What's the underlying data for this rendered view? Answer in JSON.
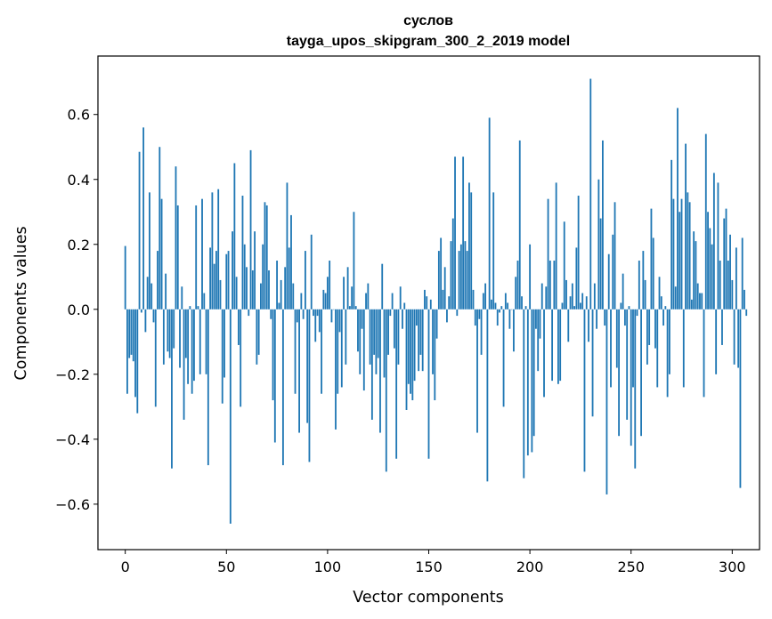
{
  "chart_data": {
    "type": "bar",
    "title": "суслов",
    "subtitle": "tayga_upos_skipgram_300_2_2019 model",
    "xlabel": "Vector components",
    "ylabel": "Components values",
    "xlim": [
      -13.5,
      313.5
    ],
    "ylim": [
      -0.74,
      0.78
    ],
    "xticks": [
      0,
      50,
      100,
      150,
      200,
      250,
      300
    ],
    "xtick_labels": [
      "0",
      "50",
      "100",
      "150",
      "200",
      "250",
      "300"
    ],
    "yticks": [
      -0.6,
      -0.4,
      -0.2,
      0.0,
      0.2,
      0.4,
      0.6
    ],
    "ytick_labels": [
      "−0.6",
      "−0.4",
      "−0.2",
      "0.0",
      "0.2",
      "0.4",
      "0.6"
    ],
    "color": "#1f77b4",
    "grid": false,
    "values": [
      0.195,
      -0.26,
      -0.15,
      -0.14,
      -0.16,
      -0.27,
      -0.32,
      0.485,
      -0.01,
      0.56,
      -0.07,
      0.1,
      0.36,
      0.08,
      -0.04,
      -0.3,
      0.18,
      0.5,
      0.34,
      -0.17,
      0.11,
      -0.13,
      -0.15,
      -0.49,
      -0.12,
      0.44,
      0.32,
      -0.18,
      0.07,
      -0.34,
      -0.15,
      -0.23,
      0.01,
      -0.26,
      -0.22,
      0.32,
      0.01,
      -0.2,
      0.34,
      0.05,
      -0.2,
      -0.48,
      0.19,
      0.36,
      0.14,
      0.18,
      0.37,
      0.09,
      -0.29,
      -0.21,
      0.17,
      0.18,
      -0.66,
      0.24,
      0.45,
      0.1,
      -0.11,
      -0.3,
      0.35,
      0.2,
      0.13,
      -0.02,
      0.49,
      0.12,
      0.24,
      -0.17,
      -0.14,
      0.08,
      0.2,
      0.33,
      0.32,
      0.12,
      -0.03,
      -0.28,
      -0.41,
      0.15,
      0.02,
      0.09,
      -0.48,
      0.13,
      0.39,
      0.19,
      0.29,
      0.08,
      -0.26,
      -0.04,
      -0.38,
      0.05,
      -0.03,
      0.18,
      -0.35,
      -0.47,
      0.23,
      -0.02,
      -0.1,
      -0.02,
      -0.07,
      -0.26,
      0.06,
      0.05,
      0.1,
      0.15,
      -0.04,
      0.0,
      -0.37,
      -0.26,
      -0.07,
      -0.24,
      0.1,
      -0.17,
      0.13,
      0.01,
      0.07,
      0.3,
      0.01,
      -0.13,
      -0.2,
      -0.06,
      -0.25,
      0.05,
      0.08,
      -0.17,
      -0.34,
      -0.14,
      -0.2,
      -0.15,
      -0.38,
      0.14,
      -0.21,
      -0.5,
      -0.14,
      -0.02,
      0.05,
      -0.12,
      -0.46,
      -0.17,
      0.07,
      -0.06,
      0.02,
      -0.31,
      -0.23,
      -0.26,
      -0.28,
      -0.22,
      -0.05,
      -0.19,
      -0.14,
      -0.19,
      0.06,
      0.04,
      -0.46,
      0.03,
      -0.2,
      -0.28,
      -0.09,
      0.18,
      0.22,
      0.06,
      0.13,
      -0.04,
      0.04,
      0.21,
      0.28,
      0.47,
      -0.02,
      0.18,
      0.2,
      0.47,
      0.21,
      0.18,
      0.39,
      0.36,
      0.06,
      -0.05,
      -0.38,
      -0.03,
      -0.14,
      0.05,
      0.08,
      -0.53,
      0.59,
      0.03,
      0.36,
      0.02,
      -0.05,
      -0.01,
      0.01,
      -0.3,
      0.05,
      0.02,
      -0.06,
      0.0,
      -0.13,
      0.1,
      0.15,
      0.52,
      0.04,
      -0.52,
      0.01,
      -0.45,
      0.2,
      -0.44,
      -0.39,
      -0.06,
      -0.19,
      -0.09,
      0.08,
      -0.27,
      0.07,
      0.34,
      0.15,
      -0.22,
      0.15,
      0.39,
      -0.23,
      -0.22,
      0.02,
      0.27,
      0.09,
      -0.1,
      0.04,
      0.08,
      0.01,
      0.19,
      0.35,
      0.02,
      0.05,
      -0.5,
      0.04,
      -0.1,
      0.71,
      -0.33,
      0.08,
      -0.06,
      0.4,
      0.28,
      0.52,
      -0.05,
      -0.57,
      0.17,
      -0.24,
      0.23,
      0.33,
      -0.18,
      -0.39,
      0.02,
      0.11,
      -0.05,
      -0.34,
      0.01,
      -0.42,
      -0.24,
      -0.49,
      -0.02,
      0.15,
      -0.39,
      0.18,
      0.09,
      -0.17,
      -0.11,
      0.31,
      0.22,
      -0.12,
      -0.24,
      0.1,
      0.04,
      -0.05,
      0.01,
      -0.27,
      -0.2,
      0.46,
      0.34,
      0.07,
      0.62,
      0.3,
      0.34,
      -0.24,
      0.51,
      0.36,
      0.33,
      0.03,
      0.24,
      0.21,
      0.08,
      0.05,
      0.05,
      -0.27,
      0.54,
      0.3,
      0.25,
      0.2,
      0.42,
      -0.2,
      0.39,
      0.15,
      -0.11,
      0.28,
      0.31,
      0.15,
      0.23,
      0.09,
      -0.17,
      0.19,
      -0.18,
      -0.55,
      0.22,
      0.06,
      -0.02
    ]
  }
}
